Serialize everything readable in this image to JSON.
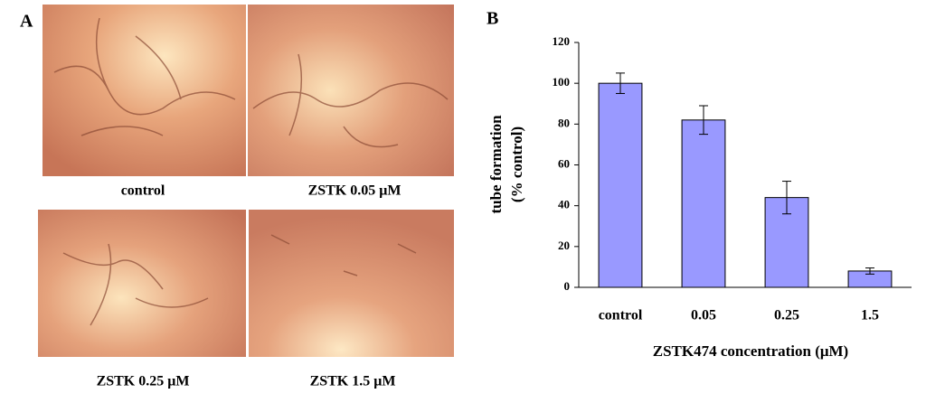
{
  "panel_a": {
    "label": "A",
    "captions": [
      "control",
      "ZSTK 0.05 μM",
      "ZSTK 0.25 μM",
      "ZSTK 1.5 μM"
    ]
  },
  "chart_data": {
    "type": "bar",
    "panel_label": "B",
    "categories": [
      "control",
      "0.05",
      "0.25",
      "1.5"
    ],
    "values": [
      100,
      82,
      44,
      8
    ],
    "errors": [
      5,
      7,
      8,
      1.5
    ],
    "color": "#9999ff",
    "ylabel": [
      "tube formation",
      "(% control)"
    ],
    "xlabel": "ZSTK474 concentration (μM)",
    "ylim": [
      0,
      120
    ],
    "yticks": [
      0,
      20,
      40,
      60,
      80,
      100,
      120
    ],
    "grid": false
  }
}
